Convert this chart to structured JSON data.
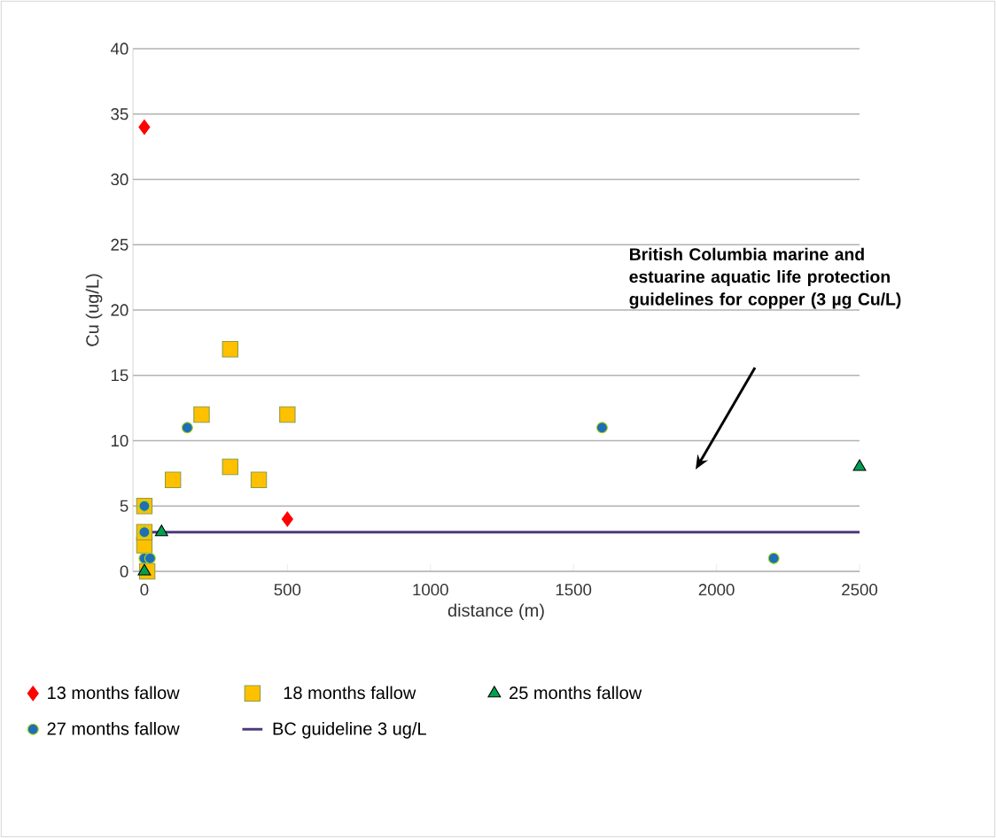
{
  "chart_data": {
    "type": "scatter",
    "xlabel": "distance (m)",
    "ylabel": "Cu (ug/L)",
    "xlim": [
      -40,
      2500
    ],
    "ylim": [
      0,
      40
    ],
    "xticks": [
      0,
      500,
      1000,
      1500,
      2000,
      2500
    ],
    "yticks": [
      0,
      5,
      10,
      15,
      20,
      25,
      30,
      35,
      40
    ],
    "grid": "y",
    "legend": "bottom",
    "annotations": [
      "British Columbia marine and estuarine aquatic life protection guidelines for copper (3 µg Cu/L)"
    ],
    "series": [
      {
        "name": "13 months fallow",
        "color": "#ff0000",
        "marker": "diamond",
        "x": [
          0,
          500
        ],
        "values": [
          34,
          4
        ]
      },
      {
        "name": "18 months fallow",
        "color": "#ffc000",
        "marker": "square",
        "x": [
          0,
          0,
          0,
          10,
          100,
          200,
          300,
          300,
          400,
          500
        ],
        "values": [
          2,
          3,
          5,
          0,
          7,
          12,
          17,
          8,
          7,
          12
        ]
      },
      {
        "name": "25 months fallow",
        "color": "#00a050",
        "marker": "triangle",
        "x": [
          0,
          60,
          2500
        ],
        "values": [
          0,
          3,
          8
        ]
      },
      {
        "name": "27 months fallow",
        "color": "#1f6fb4",
        "marker": "circle",
        "x": [
          0,
          0,
          0,
          20,
          150,
          1600,
          2200
        ],
        "values": [
          5,
          3,
          1,
          1,
          11,
          11,
          1
        ]
      },
      {
        "name": "BC guideline 3 ug/L",
        "color": "#4b3a7a",
        "type": "line",
        "marker": "none",
        "line_style": "solid",
        "x": [
          0,
          2500
        ],
        "values": [
          3,
          3
        ]
      }
    ]
  }
}
